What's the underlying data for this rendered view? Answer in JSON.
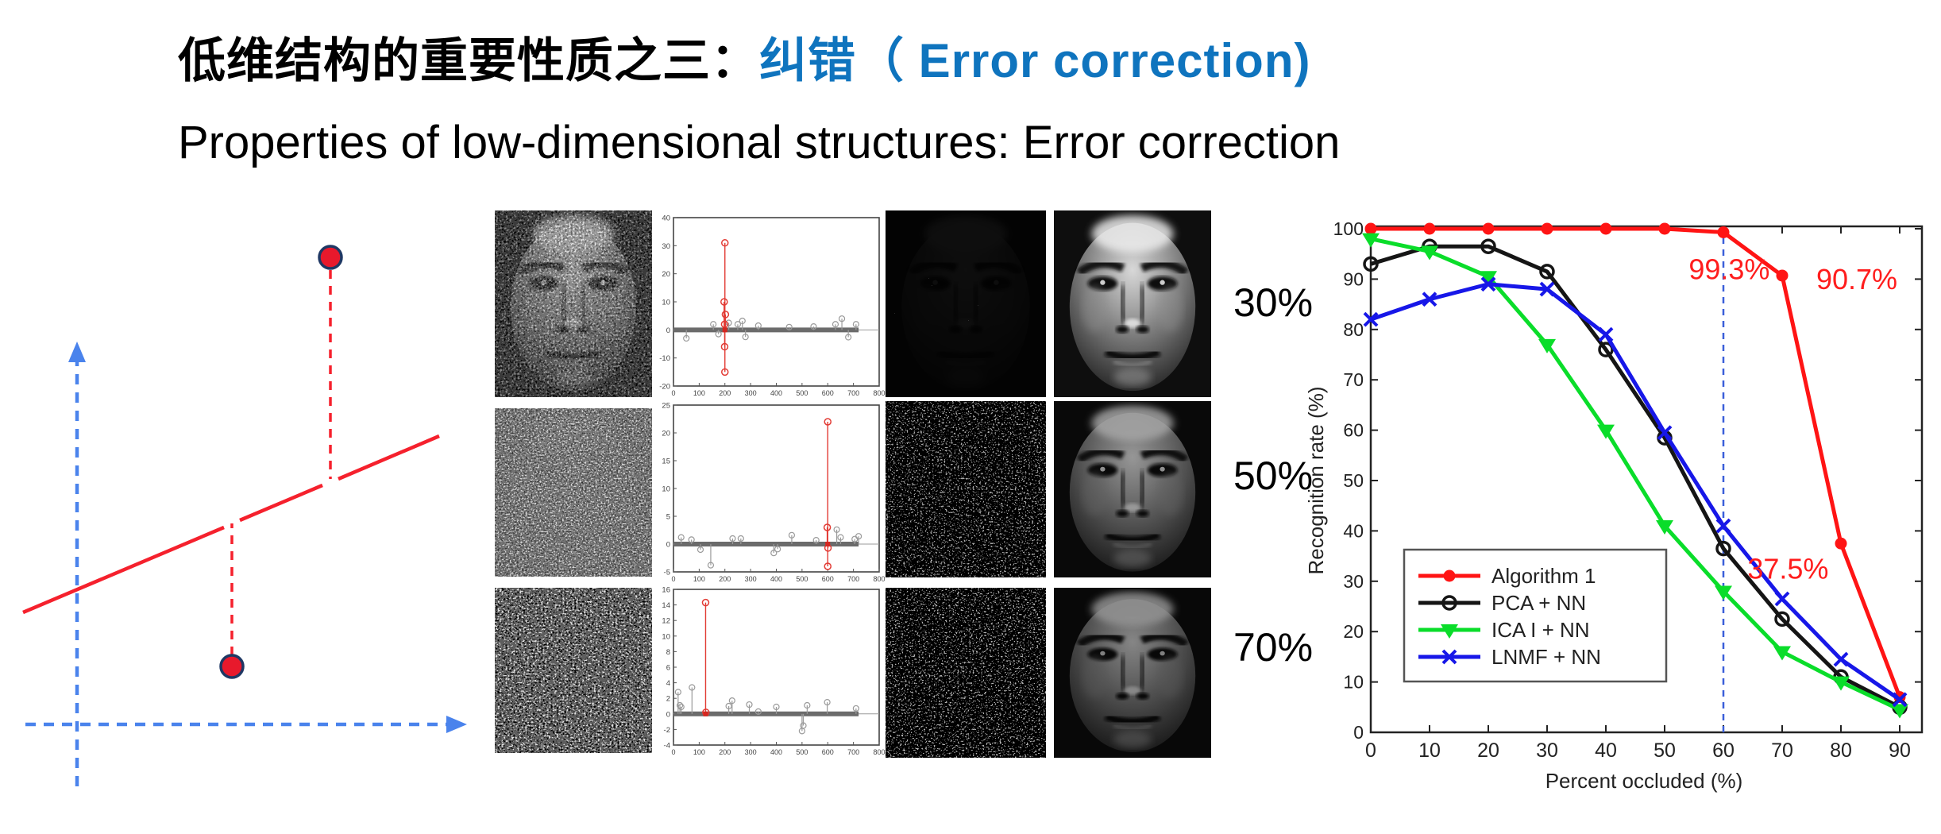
{
  "slide": {
    "title_zh_black": "低维结构的重要性质之三：",
    "title_zh_blue": "纠错（ Error correction)",
    "title_en": "Properties of low-dimensional structures: Error correction",
    "accent_blue": "#0F74BE"
  },
  "occlusion_labels": [
    "30%",
    "50%",
    "70%"
  ],
  "left_diagram": {
    "axis_color": "#4A83EC",
    "line_color": "#F5212D",
    "point_fill": "#E8192C",
    "point_stroke": "#1F3864"
  },
  "chart_data": [
    {
      "type": "line",
      "xlabel": "Percent occluded (%)",
      "ylabel": "Recognition rate (%)",
      "x": [
        0,
        10,
        20,
        30,
        40,
        50,
        60,
        70,
        80,
        90
      ],
      "xticks": [
        0,
        10,
        20,
        30,
        40,
        50,
        60,
        70,
        80,
        90
      ],
      "yticks": [
        0,
        10,
        20,
        30,
        40,
        50,
        60,
        70,
        80,
        90,
        100
      ],
      "xlim": [
        0,
        90
      ],
      "ylim": [
        0,
        100
      ],
      "box": true,
      "grid": false,
      "legend_position": "lower-left",
      "vline": {
        "x": 60,
        "color": "#3A5FD9",
        "style": "dashed"
      },
      "series": [
        {
          "name": "Algorithm 1",
          "color": "#FF1414",
          "marker": "filled-circle",
          "values": [
            100,
            100,
            100,
            100,
            100,
            100,
            99.3,
            90.7,
            37.5,
            7
          ]
        },
        {
          "name": "PCA + NN",
          "color": "#151515",
          "marker": "open-circle",
          "values": [
            93,
            96.5,
            96.5,
            91.5,
            76,
            58.5,
            36.5,
            22.5,
            11,
            5
          ]
        },
        {
          "name": "ICA I + NN",
          "color": "#0ADD2A",
          "marker": "triangle-down",
          "values": [
            98,
            95.5,
            90.5,
            77,
            60,
            41,
            28,
            16,
            10,
            4.5
          ]
        },
        {
          "name": "LNMF + NN",
          "color": "#1717E8",
          "marker": "x",
          "values": [
            82,
            86,
            89,
            88,
            79,
            59.5,
            41,
            26.5,
            14.5,
            6.5
          ]
        }
      ],
      "annotations": [
        {
          "text": "99.3%",
          "ax": 61,
          "ay": 90,
          "color": "#FF1D1D"
        },
        {
          "text": "90.7%",
          "ax": 82.7,
          "ay": 88,
          "color": "#FF1D1D"
        },
        {
          "text": "37.5%",
          "ax": 71,
          "ay": 30.5,
          "color": "#FF1D1D"
        }
      ]
    },
    {
      "type": "stem",
      "xlim": [
        0,
        800
      ],
      "xticks": [
        0,
        100,
        200,
        300,
        400,
        500,
        600,
        700,
        800
      ],
      "ylim": [
        -20,
        40
      ],
      "yticks": [
        40,
        30,
        20,
        10,
        0,
        -10,
        -20
      ],
      "red_stems": [
        [
          200,
          31
        ],
        [
          197,
          10
        ],
        [
          202,
          5.5
        ],
        [
          199,
          2
        ],
        [
          199,
          -6
        ],
        [
          200,
          -15
        ]
      ],
      "gray_stems": [
        [
          50,
          -3
        ],
        [
          155,
          2
        ],
        [
          175,
          -1.5
        ],
        [
          215,
          2.5
        ],
        [
          250,
          2
        ],
        [
          268,
          3.2
        ],
        [
          280,
          -2.5
        ],
        [
          330,
          1.5
        ],
        [
          450,
          1
        ],
        [
          545,
          1.2
        ],
        [
          630,
          2
        ],
        [
          655,
          4
        ],
        [
          680,
          -2.6
        ],
        [
          710,
          2
        ]
      ]
    },
    {
      "type": "stem",
      "xlim": [
        0,
        800
      ],
      "xticks": [
        0,
        100,
        200,
        300,
        400,
        500,
        600,
        700,
        800
      ],
      "ylim": [
        -5,
        25
      ],
      "yticks": [
        25,
        20,
        15,
        10,
        5,
        0,
        -5
      ],
      "red_stems": [
        [
          600,
          22
        ],
        [
          598,
          3
        ],
        [
          601,
          -0.7
        ],
        [
          600,
          -4
        ]
      ],
      "gray_stems": [
        [
          30,
          1.2
        ],
        [
          70,
          0.8
        ],
        [
          105,
          -1
        ],
        [
          145,
          -3.8
        ],
        [
          230,
          1
        ],
        [
          262,
          1
        ],
        [
          390,
          -1.6
        ],
        [
          405,
          -0.9
        ],
        [
          460,
          1.6
        ],
        [
          555,
          0.7
        ],
        [
          635,
          2.6
        ],
        [
          650,
          1.2
        ],
        [
          705,
          0.9
        ],
        [
          720,
          1.4
        ]
      ]
    },
    {
      "type": "stem",
      "xlim": [
        0,
        800
      ],
      "xticks": [
        0,
        100,
        200,
        300,
        400,
        500,
        600,
        700,
        800
      ],
      "ylim": [
        -4,
        16
      ],
      "yticks": [
        16,
        14,
        12,
        10,
        8,
        6,
        4,
        2,
        0,
        -2,
        -4
      ],
      "red_stems": [
        [
          125,
          14.3
        ],
        [
          126,
          0.2
        ]
      ],
      "gray_stems": [
        [
          18,
          2.8
        ],
        [
          25,
          1.1
        ],
        [
          30,
          0.9
        ],
        [
          72,
          3.4
        ],
        [
          215,
          1
        ],
        [
          228,
          1.7
        ],
        [
          295,
          1.2
        ],
        [
          330,
          0.3
        ],
        [
          400,
          0.9
        ],
        [
          500,
          -2.2
        ],
        [
          505,
          -1.5
        ],
        [
          520,
          1.1
        ],
        [
          598,
          1.5
        ],
        [
          710,
          0.7
        ]
      ]
    }
  ]
}
